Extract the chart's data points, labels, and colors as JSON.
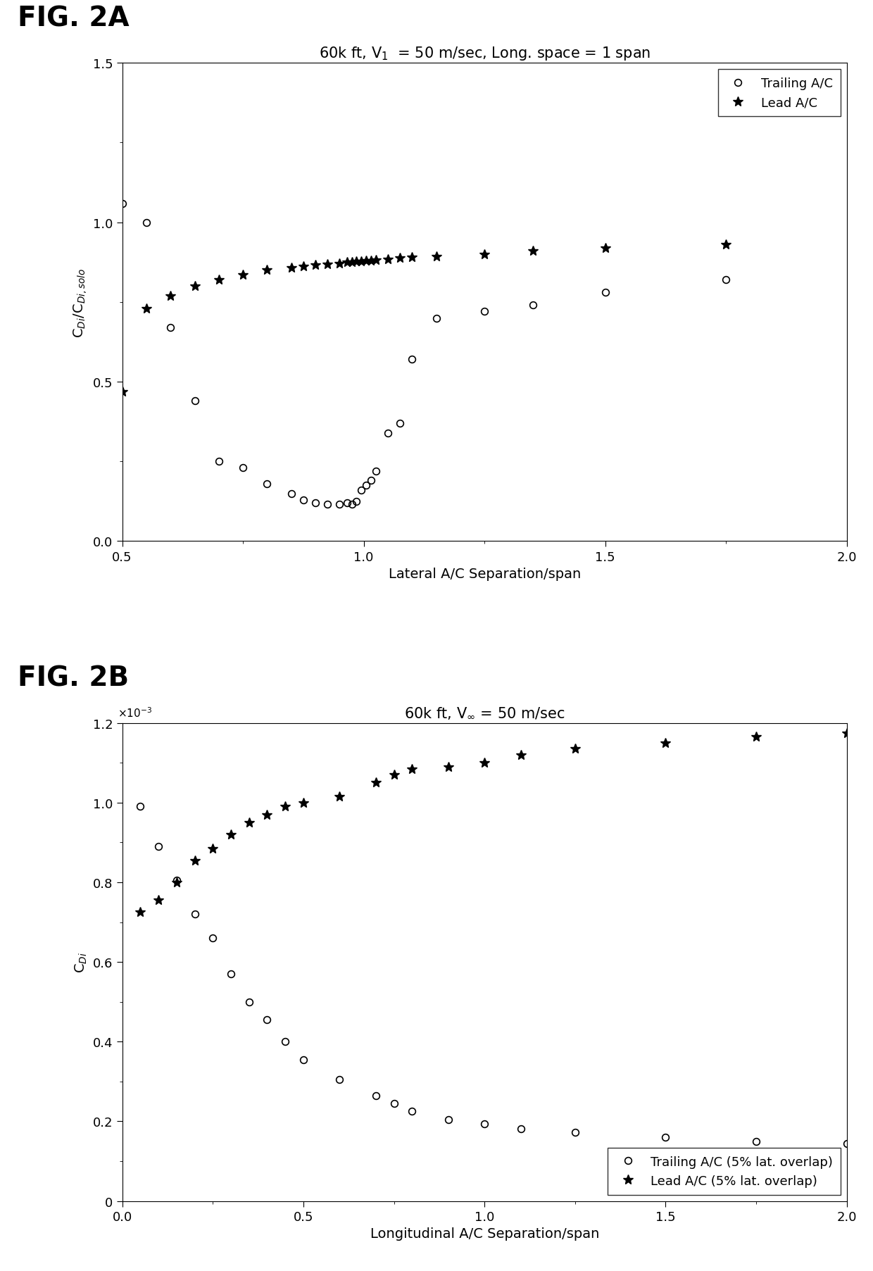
{
  "fig2a": {
    "title_parts": [
      "60k ft, V",
      "1",
      " = 50 m/sec, Long. space = 1 span"
    ],
    "xlabel": "Lateral A/C Separation/span",
    "ylabel": "C$_{Di}$/C$_{Di,solo}$",
    "xlim": [
      0.5,
      2.0
    ],
    "ylim": [
      0,
      1.5
    ],
    "xticks": [
      0.5,
      1.0,
      1.5,
      2.0
    ],
    "yticks": [
      0,
      0.5,
      1.0,
      1.5
    ],
    "trailing_x": [
      0.5,
      0.55,
      0.6,
      0.65,
      0.7,
      0.75,
      0.8,
      0.85,
      0.875,
      0.9,
      0.925,
      0.95,
      0.965,
      0.975,
      0.985,
      0.995,
      1.005,
      1.015,
      1.025,
      1.05,
      1.075,
      1.1,
      1.15,
      1.25,
      1.35,
      1.5,
      1.75
    ],
    "trailing_y": [
      1.06,
      1.0,
      0.67,
      0.44,
      0.25,
      0.23,
      0.18,
      0.15,
      0.13,
      0.12,
      0.115,
      0.115,
      0.12,
      0.115,
      0.125,
      0.16,
      0.175,
      0.19,
      0.22,
      0.34,
      0.37,
      0.57,
      0.7,
      0.72,
      0.74,
      0.78,
      0.82
    ],
    "lead_x": [
      0.5,
      0.55,
      0.6,
      0.65,
      0.7,
      0.75,
      0.8,
      0.85,
      0.875,
      0.9,
      0.925,
      0.95,
      0.965,
      0.975,
      0.985,
      0.995,
      1.005,
      1.015,
      1.025,
      1.05,
      1.075,
      1.1,
      1.15,
      1.25,
      1.35,
      1.5,
      1.75
    ],
    "lead_y": [
      0.47,
      0.73,
      0.77,
      0.8,
      0.82,
      0.835,
      0.852,
      0.858,
      0.862,
      0.866,
      0.87,
      0.872,
      0.875,
      0.876,
      0.877,
      0.878,
      0.879,
      0.88,
      0.882,
      0.885,
      0.888,
      0.89,
      0.893,
      0.9,
      0.91,
      0.92,
      0.93
    ],
    "legend_trailing": "Trailing A/C",
    "legend_lead": "Lead A/C"
  },
  "fig2b": {
    "title": "60k ft, V$_{\\infty}$ = 50 m/sec",
    "xlabel": "Longitudinal A/C Separation/span",
    "ylabel": "C$_{Di}$",
    "xlim": [
      0,
      2.0
    ],
    "ylim": [
      0,
      0.0012
    ],
    "xticks": [
      0,
      0.5,
      1.0,
      1.5,
      2.0
    ],
    "ytick_labels": [
      "0",
      "0.2",
      "0.4",
      "0.6",
      "0.8",
      "1.0",
      "1.2"
    ],
    "ytick_vals": [
      0,
      0.0002,
      0.0004,
      0.0006,
      0.0008,
      0.001,
      0.0012
    ],
    "trailing_x": [
      0.05,
      0.1,
      0.15,
      0.2,
      0.25,
      0.3,
      0.35,
      0.4,
      0.45,
      0.5,
      0.6,
      0.7,
      0.75,
      0.8,
      0.9,
      1.0,
      1.1,
      1.25,
      1.5,
      1.75,
      2.0
    ],
    "trailing_y": [
      0.00099,
      0.00089,
      0.000805,
      0.00072,
      0.00066,
      0.00057,
      0.0005,
      0.000455,
      0.0004,
      0.000355,
      0.000305,
      0.000265,
      0.000245,
      0.000225,
      0.000205,
      0.000193,
      0.000182,
      0.000172,
      0.00016,
      0.00015,
      0.000145
    ],
    "lead_x": [
      0.05,
      0.1,
      0.15,
      0.2,
      0.25,
      0.3,
      0.35,
      0.4,
      0.45,
      0.5,
      0.6,
      0.7,
      0.75,
      0.8,
      0.9,
      1.0,
      1.1,
      1.25,
      1.5,
      1.75,
      2.0
    ],
    "lead_y": [
      0.000725,
      0.000755,
      0.0008,
      0.000855,
      0.000885,
      0.00092,
      0.00095,
      0.00097,
      0.00099,
      0.001,
      0.001015,
      0.00105,
      0.00107,
      0.001085,
      0.00109,
      0.0011,
      0.00112,
      0.001135,
      0.00115,
      0.001165,
      0.001175
    ],
    "legend_trailing": "Trailing A/C (5% lat. overlap)",
    "legend_lead": "Lead A/C (5% lat. overlap)"
  },
  "fig_label_fontsize": 28,
  "title_fontsize": 15,
  "axis_label_fontsize": 14,
  "tick_fontsize": 13,
  "legend_fontsize": 13,
  "background_color": "#ffffff",
  "text_color": "#000000"
}
